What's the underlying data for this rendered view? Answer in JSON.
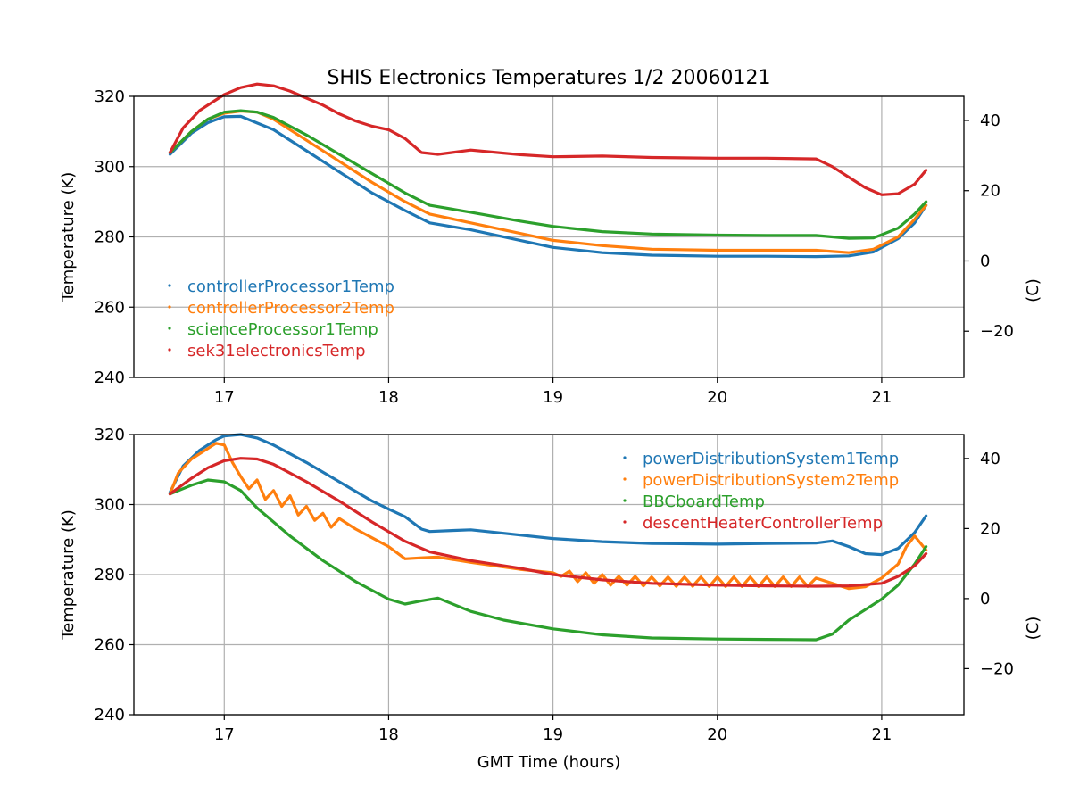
{
  "colors": {
    "blue": "#1f77b4",
    "orange": "#ff7f0e",
    "green": "#2ca02c",
    "red": "#d62728",
    "grid": "#b0b0b0"
  },
  "chart_data": [
    {
      "type": "line",
      "title": "SHIS Electronics Temperatures 1/2 20060121",
      "xlabel": "",
      "ylabel": "Temperature (K)",
      "y2label": "(C)",
      "xlim": [
        16.45,
        21.5
      ],
      "ylim": [
        240,
        320
      ],
      "xticks": [
        17,
        18,
        19,
        20,
        21
      ],
      "yticks": [
        240,
        260,
        280,
        300,
        320
      ],
      "y2ticks": [
        -20,
        0,
        20,
        40
      ],
      "grid": true,
      "legend_position": "center-left",
      "series": [
        {
          "name": "controllerProcessor1Temp",
          "color": "#1f77b4",
          "x": [
            16.67,
            16.8,
            16.9,
            17.0,
            17.1,
            17.3,
            17.5,
            17.7,
            17.9,
            18.1,
            18.25,
            18.5,
            18.8,
            19.0,
            19.3,
            19.6,
            20.0,
            20.3,
            20.6,
            20.8,
            20.95,
            21.1,
            21.2,
            21.27
          ],
          "values": [
            303.5,
            309.5,
            312.5,
            314.2,
            314.3,
            310.5,
            304.5,
            298.5,
            292.5,
            287.5,
            284.0,
            282.0,
            279.0,
            277.0,
            275.5,
            274.8,
            274.5,
            274.5,
            274.4,
            274.6,
            275.7,
            279.5,
            284.0,
            289.0
          ]
        },
        {
          "name": "controllerProcessor2Temp",
          "color": "#ff7f0e",
          "x": [
            16.67,
            16.8,
            16.9,
            17.0,
            17.1,
            17.2,
            17.3,
            17.5,
            17.7,
            17.9,
            18.1,
            18.25,
            18.5,
            18.8,
            19.0,
            19.3,
            19.6,
            20.0,
            20.3,
            20.6,
            20.8,
            20.95,
            21.1,
            21.2,
            21.27
          ],
          "values": [
            304.0,
            310.0,
            313.5,
            315.2,
            315.8,
            315.5,
            313.5,
            307.5,
            301.5,
            295.5,
            290.0,
            286.5,
            284.0,
            281.0,
            279.0,
            277.5,
            276.5,
            276.2,
            276.2,
            276.2,
            275.5,
            276.5,
            280.0,
            285.0,
            289.0
          ]
        },
        {
          "name": "scienceProcessor1Temp",
          "color": "#2ca02c",
          "x": [
            16.67,
            16.8,
            16.9,
            17.0,
            17.1,
            17.2,
            17.3,
            17.5,
            17.7,
            17.9,
            18.1,
            18.25,
            18.5,
            18.8,
            19.0,
            19.3,
            19.6,
            20.0,
            20.3,
            20.6,
            20.8,
            20.95,
            21.1,
            21.2,
            21.27
          ],
          "values": [
            304.0,
            310.0,
            313.5,
            315.5,
            315.9,
            315.5,
            314.0,
            309.0,
            303.5,
            298.0,
            292.5,
            289.0,
            287.0,
            284.5,
            283.0,
            281.5,
            280.8,
            280.5,
            280.4,
            280.4,
            279.6,
            279.7,
            282.5,
            286.5,
            290.0
          ]
        },
        {
          "name": "sek31electronicsTemp",
          "color": "#d62728",
          "x": [
            16.67,
            16.75,
            16.85,
            16.95,
            17.0,
            17.1,
            17.2,
            17.3,
            17.4,
            17.5,
            17.6,
            17.7,
            17.8,
            17.9,
            18.0,
            18.1,
            18.2,
            18.3,
            18.5,
            18.8,
            19.0,
            19.3,
            19.6,
            20.0,
            20.3,
            20.6,
            20.7,
            20.8,
            20.9,
            21.0,
            21.1,
            21.2,
            21.27
          ],
          "values": [
            304.0,
            311.0,
            316.0,
            319.0,
            320.5,
            322.5,
            323.5,
            323.0,
            321.5,
            319.5,
            317.5,
            315.0,
            313.0,
            311.5,
            310.5,
            308.0,
            304.0,
            303.5,
            304.7,
            303.4,
            302.8,
            303.0,
            302.6,
            302.4,
            302.4,
            302.2,
            300.0,
            297.0,
            294.0,
            292.0,
            292.3,
            295.0,
            299.0
          ]
        }
      ]
    },
    {
      "type": "line",
      "title": "",
      "xlabel": "GMT Time (hours)",
      "ylabel": "Temperature (K)",
      "y2label": "(C)",
      "xlim": [
        16.45,
        21.5
      ],
      "ylim": [
        240,
        320
      ],
      "xticks": [
        17,
        18,
        19,
        20,
        21
      ],
      "yticks": [
        240,
        260,
        280,
        300,
        320
      ],
      "y2ticks": [
        -20,
        0,
        20,
        40
      ],
      "grid": true,
      "legend_position": "top-right",
      "series": [
        {
          "name": "powerDistributionSystem1Temp",
          "color": "#1f77b4",
          "x": [
            16.67,
            16.75,
            16.85,
            16.95,
            17.0,
            17.1,
            17.2,
            17.3,
            17.5,
            17.7,
            17.9,
            18.0,
            18.1,
            18.2,
            18.25,
            18.4,
            18.5,
            18.7,
            19.0,
            19.3,
            19.6,
            20.0,
            20.3,
            20.6,
            20.7,
            20.8,
            20.9,
            21.0,
            21.1,
            21.2,
            21.27
          ],
          "values": [
            303.5,
            311.0,
            315.5,
            318.5,
            319.6,
            320.0,
            319.0,
            317.0,
            312.0,
            306.5,
            301.0,
            298.7,
            296.5,
            293.0,
            292.3,
            292.6,
            292.8,
            291.8,
            290.3,
            289.4,
            288.9,
            288.7,
            288.9,
            289.0,
            289.6,
            288.0,
            286.0,
            285.7,
            287.5,
            292.0,
            296.8
          ]
        },
        {
          "name": "powerDistributionSystem2Temp",
          "color": "#ff7f0e",
          "x": [
            16.67,
            16.72,
            16.8,
            16.9,
            16.95,
            17.0,
            17.05,
            17.1,
            17.15,
            17.2,
            17.25,
            17.3,
            17.35,
            17.4,
            17.45,
            17.5,
            17.55,
            17.6,
            17.65,
            17.7,
            17.8,
            17.9,
            18.0,
            18.1,
            18.2,
            18.3,
            18.5,
            18.8,
            19.0,
            19.05,
            19.1,
            19.15,
            19.2,
            19.25,
            19.3,
            19.35,
            19.4,
            19.45,
            19.5,
            19.55,
            19.6,
            19.65,
            19.7,
            19.75,
            19.8,
            19.85,
            19.9,
            19.95,
            20.0,
            20.05,
            20.1,
            20.15,
            20.2,
            20.25,
            20.3,
            20.35,
            20.4,
            20.45,
            20.5,
            20.55,
            20.6,
            20.7,
            20.8,
            20.9,
            21.0,
            21.1,
            21.15,
            21.2,
            21.27
          ],
          "values": [
            303.0,
            309.0,
            313.0,
            316.0,
            317.5,
            317.0,
            312.0,
            308.0,
            304.5,
            307.0,
            301.5,
            304.0,
            299.5,
            302.5,
            297.0,
            299.5,
            295.5,
            297.5,
            293.5,
            296.0,
            293.0,
            290.5,
            288.0,
            284.5,
            284.8,
            285.0,
            283.5,
            281.5,
            280.5,
            279.5,
            281.0,
            278.0,
            280.5,
            277.5,
            280.0,
            277.0,
            279.5,
            277.0,
            279.5,
            276.8,
            279.3,
            276.8,
            279.3,
            276.7,
            279.3,
            276.7,
            279.3,
            276.6,
            279.3,
            276.6,
            279.3,
            276.6,
            279.3,
            276.6,
            279.3,
            276.6,
            279.3,
            276.6,
            279.3,
            276.6,
            279.0,
            277.5,
            276.0,
            276.5,
            279.0,
            283.0,
            288.0,
            291.0,
            287.0
          ]
        },
        {
          "name": "BBCboardTemp",
          "color": "#2ca02c",
          "x": [
            16.67,
            16.8,
            16.9,
            17.0,
            17.1,
            17.2,
            17.4,
            17.6,
            17.8,
            18.0,
            18.1,
            18.2,
            18.3,
            18.5,
            18.7,
            19.0,
            19.3,
            19.6,
            20.0,
            20.3,
            20.6,
            20.7,
            20.8,
            20.9,
            21.0,
            21.1,
            21.2,
            21.27
          ],
          "values": [
            303.0,
            305.5,
            307.0,
            306.5,
            304.0,
            299.0,
            291.0,
            284.0,
            278.0,
            273.0,
            271.6,
            272.5,
            273.3,
            269.5,
            267.0,
            264.5,
            262.8,
            261.9,
            261.6,
            261.5,
            261.4,
            263.0,
            267.0,
            270.0,
            273.0,
            277.0,
            283.0,
            288.0
          ]
        },
        {
          "name": "descentHeaterControllerTemp",
          "color": "#d62728",
          "x": [
            16.67,
            16.8,
            16.9,
            17.0,
            17.1,
            17.2,
            17.3,
            17.5,
            17.7,
            17.9,
            18.1,
            18.25,
            18.5,
            18.8,
            19.0,
            19.3,
            19.6,
            20.0,
            20.3,
            20.6,
            20.8,
            21.0,
            21.1,
            21.2,
            21.27
          ],
          "values": [
            303.0,
            307.5,
            310.5,
            312.5,
            313.2,
            313.0,
            311.5,
            306.5,
            301.0,
            295.0,
            289.5,
            286.5,
            284.0,
            281.8,
            280.0,
            278.5,
            277.5,
            277.0,
            276.8,
            276.7,
            276.8,
            277.5,
            279.5,
            282.5,
            286.0
          ]
        }
      ]
    }
  ]
}
